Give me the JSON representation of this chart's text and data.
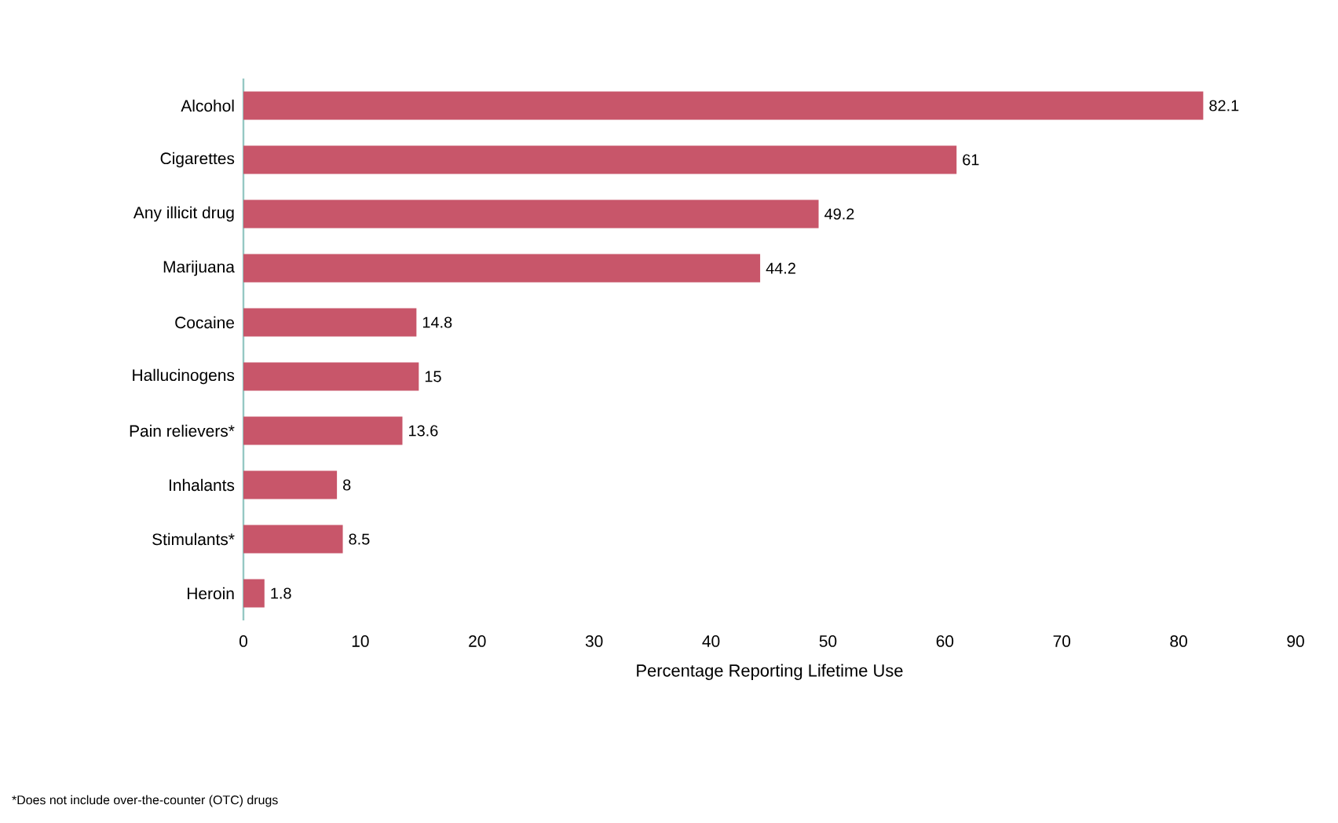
{
  "chart_data": {
    "type": "bar",
    "orientation": "horizontal",
    "xlabel": "Percentage Reporting Lifetime Use",
    "categories": [
      "Alcohol",
      "Cigarettes",
      "Any illicit drug",
      "Marijuana",
      "Cocaine",
      "Hallucinogens",
      "Pain relievers*",
      "Inhalants",
      "Stimulants*",
      "Heroin"
    ],
    "values": [
      82.1,
      61,
      49.2,
      44.2,
      14.8,
      15,
      13.6,
      8,
      8.5,
      1.8
    ],
    "color": "#c8566a",
    "data_labels": true,
    "xlim": [
      0,
      90
    ],
    "xticks": [
      0,
      10,
      20,
      30,
      40,
      50,
      60,
      70,
      80,
      90
    ],
    "annotations": [
      "*Does not include over-the-counter (OTC) drugs"
    ]
  }
}
